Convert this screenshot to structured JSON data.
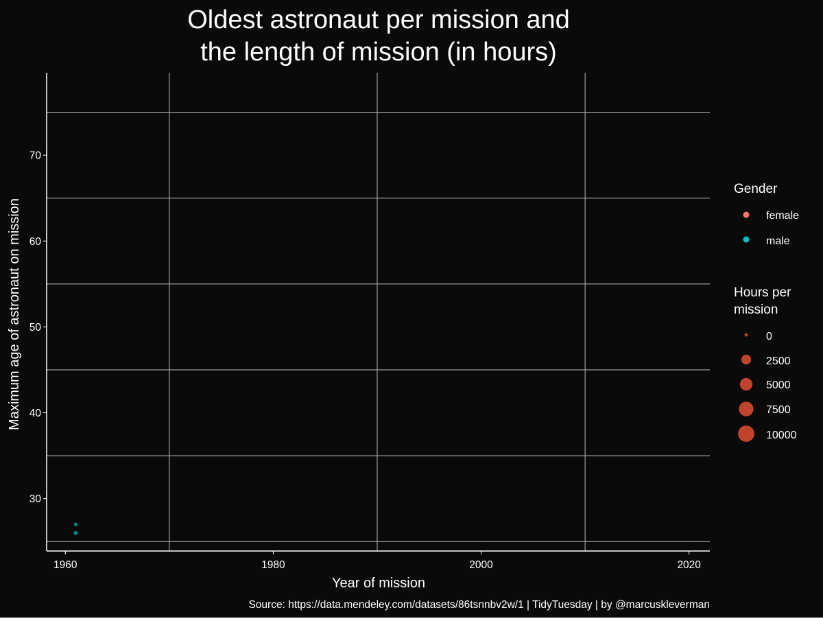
{
  "chart_data": {
    "type": "scatter",
    "title": "Oldest astronaut per mission and\nthe length of mission (in hours)",
    "title_lines": [
      "Oldest astronaut per mission and",
      "the length of mission (in hours)"
    ],
    "xlabel": "Year of mission",
    "ylabel": "Maximum age of astronaut on mission",
    "caption": "Source: https://data.mendeley.com/datasets/86tsnnbv2w/1 | TidyTuesday | by @marcuskleverman",
    "xlim": [
      1958.2,
      2022
    ],
    "ylim": [
      23.9,
      79.6
    ],
    "x_ticks": [
      1960,
      1980,
      2000,
      2020
    ],
    "y_ticks": [
      30,
      40,
      50,
      60,
      70
    ],
    "x_grid_minor": [
      1970,
      1990,
      2010
    ],
    "y_grid_minor": [
      25,
      35,
      45,
      55,
      65,
      75
    ],
    "grid": true,
    "series": [
      {
        "name": "male",
        "color": "#00BFC4",
        "points": [
          {
            "x": 1961,
            "y": 27,
            "hours": 1.8
          },
          {
            "x": 1961,
            "y": 26,
            "hours": 25.3
          }
        ]
      }
    ],
    "legend_gender": {
      "title": "Gender",
      "placement": "right",
      "items": [
        {
          "label": "female",
          "color": "#F8766D"
        },
        {
          "label": "male",
          "color": "#00BFC4"
        }
      ]
    },
    "legend_size": {
      "title_lines": [
        "Hours per",
        "mission"
      ],
      "placement": "right",
      "color": "#c0432c",
      "items": [
        {
          "label": "0",
          "value": 0
        },
        {
          "label": "2500",
          "value": 2500
        },
        {
          "label": "5000",
          "value": 5000
        },
        {
          "label": "7500",
          "value": 7500
        },
        {
          "label": "10000",
          "value": 10000
        }
      ]
    },
    "colors": {
      "background": "#0a0a0a",
      "grid": "#bdbdbd",
      "text": "#ffffff",
      "axis": "#ffffff"
    }
  }
}
